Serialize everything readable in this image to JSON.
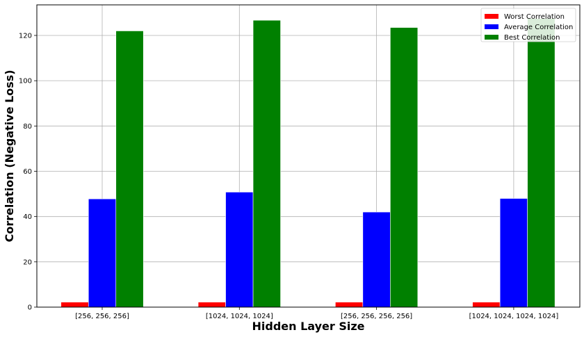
{
  "chart_data": {
    "type": "bar",
    "title": "",
    "xlabel": "Hidden Layer Size",
    "ylabel": "Correlation (Negative Loss)",
    "categories": [
      "[256, 256, 256]",
      "[1024, 1024, 1024]",
      "[256, 256, 256, 256]",
      "[1024, 1024, 1024, 1024]"
    ],
    "series": [
      {
        "name": "Worst Correlation",
        "color": "#ff0000",
        "values": [
          2.2,
          2.2,
          2.2,
          2.2
        ]
      },
      {
        "name": "Average Correlation",
        "color": "#0000ff",
        "values": [
          47.8,
          50.8,
          42.0,
          48.0
        ]
      },
      {
        "name": "Best Correlation",
        "color": "#008000",
        "values": [
          122.0,
          126.7,
          123.5,
          127.5
        ]
      }
    ],
    "ylim": [
      0,
      133.5
    ],
    "yticks": [
      0,
      20,
      40,
      60,
      80,
      100,
      120
    ],
    "grid": true,
    "legend_position": "top-right"
  }
}
